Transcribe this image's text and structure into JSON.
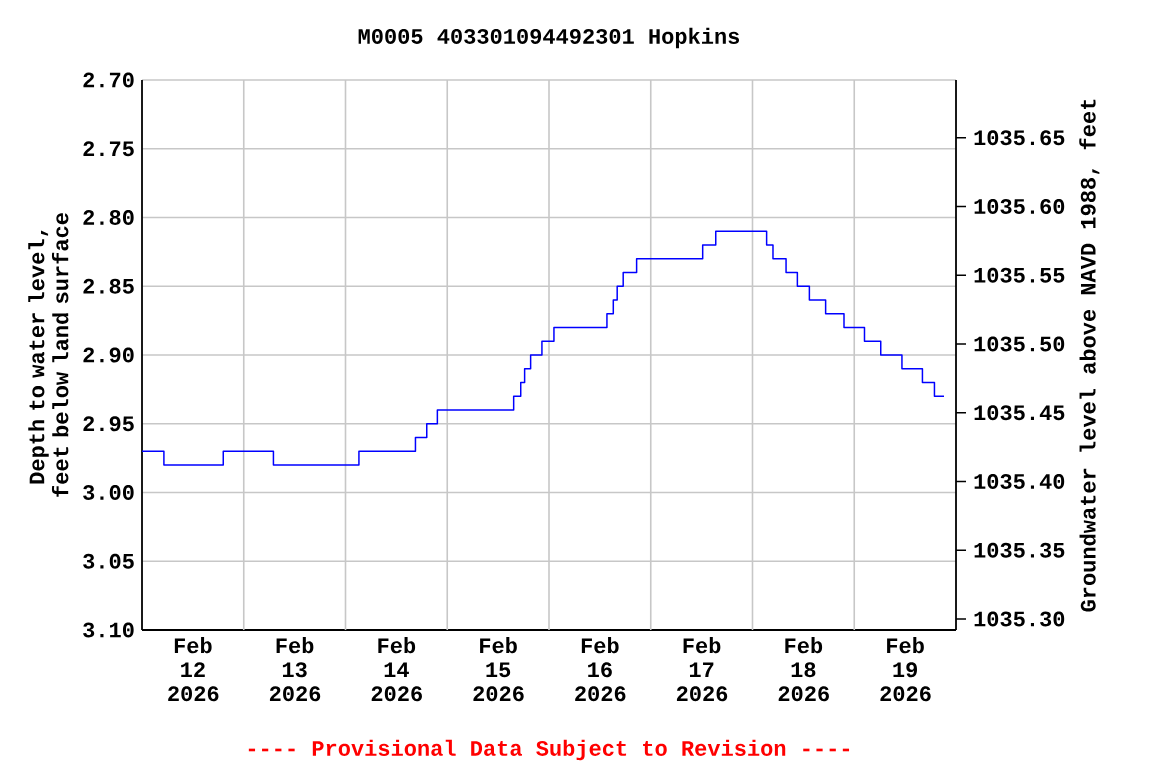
{
  "chart_data": {
    "type": "step",
    "title": "M0005 403301094492301 Hopkins",
    "ylabel": "Depth to water level, feet below land surface",
    "y2label": "Groundwater level above NAVD 1988, feet",
    "annotations": [
      "---- Provisional Data Subject to Revision ----"
    ],
    "xlim": [
      "2026-02-12T00:00",
      "2026-02-20T00:00"
    ],
    "xticks": [
      {
        "value": "2026-02-12T12:00",
        "label": "Feb 12 2026"
      },
      {
        "value": "2026-02-13T12:00",
        "label": "Feb 13 2026"
      },
      {
        "value": "2026-02-14T12:00",
        "label": "Feb 14 2026"
      },
      {
        "value": "2026-02-15T12:00",
        "label": "Feb 15 2026"
      },
      {
        "value": "2026-02-16T12:00",
        "label": "Feb 16 2026"
      },
      {
        "value": "2026-02-17T12:00",
        "label": "Feb 17 2026"
      },
      {
        "value": "2026-02-18T12:00",
        "label": "Feb 18 2026"
      },
      {
        "value": "2026-02-19T12:00",
        "label": "Feb 19 2026"
      },
      {
        "value": "2026-02-13T00:00",
        "label": null
      },
      {
        "value": "2026-02-14T00:00",
        "label": null
      },
      {
        "value": "2026-02-15T00:00",
        "label": null
      },
      {
        "value": "2026-02-16T00:00",
        "label": null
      },
      {
        "value": "2026-02-17T00:00",
        "label": null
      },
      {
        "value": "2026-02-18T00:00",
        "label": null
      },
      {
        "value": "2026-02-19T00:00",
        "label": null
      }
    ],
    "ylim": [
      3.1,
      2.7
    ],
    "yticks": [
      {
        "value": 2.7,
        "label": "2.70"
      },
      {
        "value": 2.75,
        "label": "2.75"
      },
      {
        "value": 2.8,
        "label": "2.80"
      },
      {
        "value": 2.85,
        "label": "2.85"
      },
      {
        "value": 2.9,
        "label": "2.90"
      },
      {
        "value": 2.95,
        "label": "2.95"
      },
      {
        "value": 3.0,
        "label": "3.00"
      },
      {
        "value": 3.05,
        "label": "3.05"
      },
      {
        "value": 3.1,
        "label": "3.10"
      }
    ],
    "y2lim": [
      1035.292,
      1035.692
    ],
    "y2ticks": [
      {
        "value": 1035.3,
        "label": "1035.30"
      },
      {
        "value": 1035.35,
        "label": "1035.35"
      },
      {
        "value": 1035.4,
        "label": "1035.40"
      },
      {
        "value": 1035.45,
        "label": "1035.45"
      },
      {
        "value": 1035.5,
        "label": "1035.50"
      },
      {
        "value": 1035.55,
        "label": "1035.55"
      },
      {
        "value": 1035.6,
        "label": "1035.60"
      },
      {
        "value": 1035.65,
        "label": "1035.65"
      }
    ],
    "grid": true,
    "series": [
      {
        "color": "#0000ff",
        "x": [
          "2026-02-12T00:00",
          "2026-02-12T05:10",
          "2026-02-12T19:10",
          "2026-02-13T07:00",
          "2026-02-14T03:10",
          "2026-02-14T16:30",
          "2026-02-14T19:10",
          "2026-02-14T21:40",
          "2026-02-15T15:40",
          "2026-02-15T17:20",
          "2026-02-15T18:15",
          "2026-02-15T19:40",
          "2026-02-15T22:20",
          "2026-02-16T01:10",
          "2026-02-16T13:40",
          "2026-02-16T15:10",
          "2026-02-16T16:05",
          "2026-02-16T17:30",
          "2026-02-16T20:40",
          "2026-02-17T12:15",
          "2026-02-17T15:20",
          "2026-02-18T03:20",
          "2026-02-18T04:50",
          "2026-02-18T07:55",
          "2026-02-18T10:35",
          "2026-02-18T13:25",
          "2026-02-18T17:15",
          "2026-02-18T21:35",
          "2026-02-19T02:25",
          "2026-02-19T06:15",
          "2026-02-19T11:15",
          "2026-02-19T16:05",
          "2026-02-19T18:55",
          "2026-02-19T21:10"
        ],
        "values": [
          2.97,
          2.98,
          2.97,
          2.98,
          2.97,
          2.96,
          2.95,
          2.94,
          2.93,
          2.92,
          2.91,
          2.9,
          2.89,
          2.88,
          2.87,
          2.86,
          2.85,
          2.84,
          2.83,
          2.82,
          2.81,
          2.82,
          2.83,
          2.84,
          2.85,
          2.86,
          2.87,
          2.88,
          2.89,
          2.9,
          2.91,
          2.92,
          2.93,
          2.93
        ]
      }
    ]
  }
}
